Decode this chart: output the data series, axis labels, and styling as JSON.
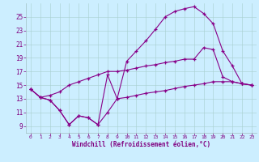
{
  "xlabel": "Windchill (Refroidissement éolien,°C)",
  "background_color": "#cceeff",
  "line_color": "#880088",
  "xlim": [
    -0.5,
    23.5
  ],
  "ylim": [
    8.0,
    27.0
  ],
  "xticks": [
    0,
    1,
    2,
    3,
    4,
    5,
    6,
    7,
    8,
    9,
    10,
    11,
    12,
    13,
    14,
    15,
    16,
    17,
    18,
    19,
    20,
    21,
    22,
    23
  ],
  "yticks": [
    9,
    11,
    13,
    15,
    17,
    19,
    21,
    23,
    25
  ],
  "line1_x": [
    0,
    1,
    2,
    3,
    4,
    5,
    6,
    7,
    8,
    9,
    10,
    11,
    12,
    13,
    14,
    15,
    16,
    17,
    18,
    19,
    20,
    21,
    22,
    23
  ],
  "line1_y": [
    14.4,
    13.2,
    12.8,
    11.3,
    9.2,
    10.5,
    10.2,
    9.2,
    16.5,
    13.0,
    18.5,
    20.0,
    21.5,
    23.2,
    25.0,
    25.8,
    26.2,
    26.5,
    25.5,
    24.0,
    20.0,
    17.8,
    15.2,
    15.0
  ],
  "line2_x": [
    0,
    1,
    2,
    3,
    4,
    5,
    6,
    7,
    8,
    9,
    10,
    11,
    12,
    13,
    14,
    15,
    16,
    17,
    18,
    19,
    20,
    21,
    22,
    23
  ],
  "line2_y": [
    14.4,
    13.2,
    13.5,
    14.0,
    15.0,
    15.5,
    16.0,
    16.5,
    17.0,
    17.0,
    17.2,
    17.5,
    17.8,
    18.0,
    18.3,
    18.5,
    18.8,
    18.8,
    20.5,
    20.2,
    16.2,
    15.5,
    15.2,
    15.0
  ],
  "line3_x": [
    0,
    1,
    2,
    3,
    4,
    5,
    6,
    7,
    8,
    9,
    10,
    11,
    12,
    13,
    14,
    15,
    16,
    17,
    18,
    19,
    20,
    21,
    22,
    23
  ],
  "line3_y": [
    14.4,
    13.2,
    12.8,
    11.3,
    9.2,
    10.5,
    10.2,
    9.2,
    11.0,
    13.0,
    13.2,
    13.5,
    13.8,
    14.0,
    14.2,
    14.5,
    14.8,
    15.0,
    15.2,
    15.5,
    15.5,
    15.5,
    15.2,
    15.0
  ]
}
